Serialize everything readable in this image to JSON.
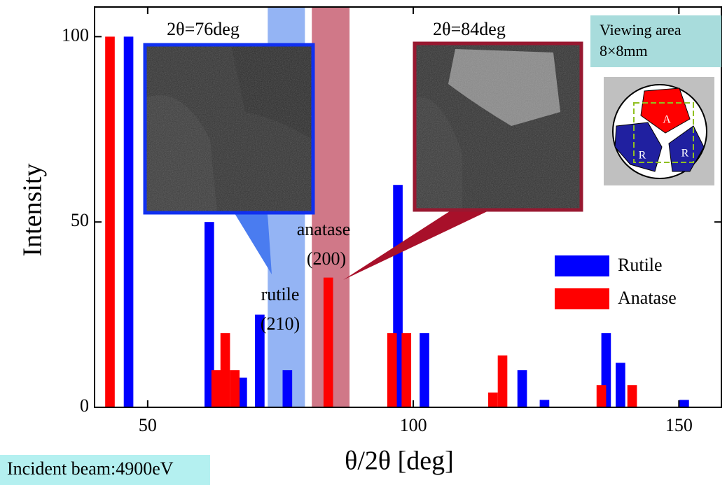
{
  "chart_data": {
    "type": "bar",
    "x_label": "θ/2θ [deg]",
    "y_label": "Intensity",
    "xlim": [
      40,
      158
    ],
    "ylim": [
      0,
      108
    ],
    "xticks": [
      50,
      100,
      150
    ],
    "yticks": [
      0,
      50,
      100
    ],
    "bar_width": 1.8,
    "series": [
      {
        "name": "Rutile",
        "color": "#0000ff",
        "x": [
          46.4,
          61.6,
          67.8,
          71.1,
          76.3,
          97.1,
          102.1,
          120.5,
          124.7,
          136.3,
          139,
          151
        ],
        "values": [
          100,
          50,
          8,
          25,
          10,
          60,
          20,
          10,
          2,
          20,
          12,
          2
        ]
      },
      {
        "name": "Anatase",
        "color": "#ff0000",
        "x": [
          42.9,
          62.9,
          64.6,
          66.4,
          84,
          96,
          98.7,
          115,
          116.8,
          135.4,
          141.2
        ],
        "values": [
          100,
          10,
          20,
          10,
          35,
          20,
          20,
          4,
          14,
          6,
          6
        ]
      }
    ],
    "bands": [
      {
        "range": [
          72.6,
          79.6
        ],
        "color": "#94b4f4"
      },
      {
        "range": [
          80.9,
          88
        ],
        "color": "#d07888"
      }
    ],
    "annotations": {
      "inset_76": "2θ=76deg",
      "inset_84": "2θ=84deg",
      "anatase_peak": [
        "anatase",
        "(200)"
      ],
      "rutile_peak": [
        "rutile",
        "(210)"
      ],
      "viewing_area": [
        "Viewing area",
        "8×8mm"
      ],
      "incident_beam": "Incident beam:4900eV",
      "schematic": [
        "A",
        "R",
        "R"
      ]
    }
  }
}
